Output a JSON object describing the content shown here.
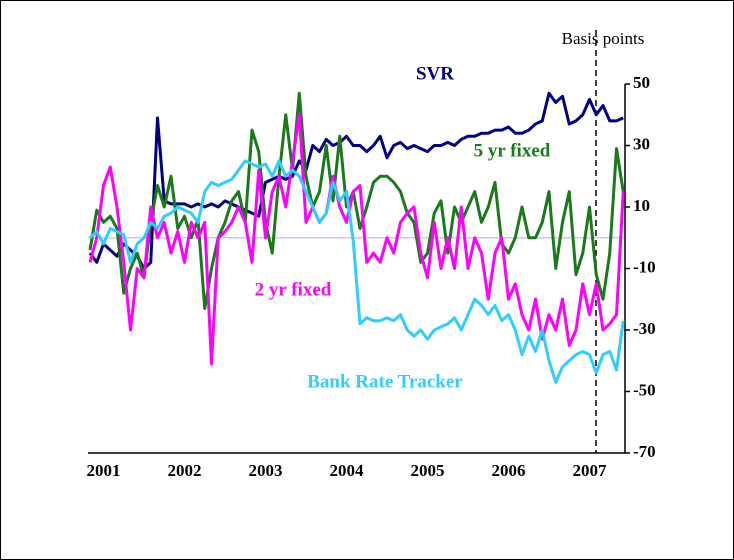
{
  "chart_data": {
    "type": "line",
    "y_axis_label": "Basis points",
    "categories": [
      null,
      null,
      "2001",
      null,
      null,
      null,
      null,
      null,
      null,
      null,
      null,
      null,
      null,
      null,
      "2002",
      null,
      null,
      null,
      null,
      null,
      null,
      null,
      null,
      null,
      null,
      null,
      "2003",
      null,
      null,
      null,
      null,
      null,
      null,
      null,
      null,
      null,
      null,
      null,
      "2004",
      null,
      null,
      null,
      null,
      null,
      null,
      null,
      null,
      null,
      null,
      null,
      "2005",
      null,
      null,
      null,
      null,
      null,
      null,
      null,
      null,
      null,
      null,
      null,
      "2006",
      null,
      null,
      null,
      null,
      null,
      null,
      null,
      null,
      null,
      null,
      null,
      "2007",
      null,
      null,
      null,
      null,
      null
    ],
    "series": [
      {
        "name": "SVR",
        "color": "#000080",
        "values": [
          -5,
          -8,
          -2,
          -4,
          -6,
          -2,
          -4,
          -6,
          -10,
          -8,
          39,
          12,
          11,
          11,
          11,
          10,
          11,
          10,
          11,
          10,
          12,
          11,
          10,
          9,
          8,
          7,
          18,
          19,
          20,
          19,
          20,
          25,
          22,
          30,
          28,
          32,
          30,
          31,
          33,
          30,
          30,
          28,
          30,
          33,
          26,
          30,
          31,
          29,
          30,
          29,
          28,
          30,
          30,
          31,
          30,
          32,
          33,
          33,
          34,
          34,
          35,
          35,
          36,
          34,
          34,
          35,
          37,
          38,
          47,
          44,
          46,
          37,
          38,
          40,
          45,
          40,
          43,
          38,
          38,
          39
        ]
      },
      {
        "name": "5 yr fixed",
        "color": "#1a7a1a",
        "values": [
          -4,
          9,
          5,
          7,
          3,
          -18,
          -10,
          -5,
          -13,
          5,
          17,
          10,
          20,
          3,
          7,
          0,
          6,
          -23,
          -10,
          0,
          5,
          12,
          15,
          5,
          35,
          28,
          5,
          -5,
          20,
          40,
          22,
          47,
          20,
          10,
          15,
          30,
          12,
          33,
          10,
          15,
          3,
          10,
          18,
          20,
          20,
          18,
          15,
          8,
          5,
          -8,
          -5,
          8,
          12,
          -5,
          10,
          5,
          10,
          15,
          5,
          10,
          18,
          -2,
          -5,
          0,
          10,
          0,
          0,
          5,
          15,
          -10,
          5,
          15,
          -12,
          -5,
          10,
          -12,
          -20,
          -5,
          29,
          15
        ]
      },
      {
        "name": "2 yr fixed",
        "color": "#ff00ff",
        "values": [
          -8,
          0,
          17,
          23,
          10,
          -8,
          -30,
          -10,
          -13,
          10,
          0,
          5,
          -5,
          2,
          -8,
          5,
          0,
          5,
          -41,
          0,
          2,
          5,
          10,
          5,
          -8,
          22,
          0,
          15,
          20,
          10,
          25,
          40,
          5,
          10,
          5,
          8,
          20,
          10,
          5,
          15,
          17,
          -8,
          -5,
          -8,
          0,
          -5,
          5,
          8,
          10,
          -5,
          -13,
          5,
          -10,
          0,
          -10,
          10,
          -10,
          0,
          -5,
          -20,
          -5,
          0,
          -20,
          -15,
          -25,
          -30,
          -20,
          -33,
          -25,
          -30,
          -20,
          -35,
          -30,
          -15,
          -25,
          -15,
          -30,
          -28,
          -25,
          15
        ]
      },
      {
        "name": "Bank Rate Tracker",
        "color": "#33ccff",
        "values": [
          0,
          2,
          -2,
          3,
          2,
          1,
          -8,
          -2,
          0,
          5,
          3,
          7,
          8,
          10,
          9,
          8,
          5,
          15,
          18,
          17,
          18,
          19,
          22,
          25,
          24,
          23,
          24,
          20,
          25,
          20,
          22,
          20,
          15,
          10,
          5,
          8,
          18,
          12,
          15,
          -1,
          -28,
          -26,
          -27,
          -27,
          -26,
          -27,
          -25,
          -30,
          -32,
          -30,
          -33,
          -30,
          -29,
          -28,
          -26,
          -30,
          -25,
          -20,
          -22,
          -25,
          -22,
          -27,
          -25,
          -30,
          -38,
          -32,
          -37,
          -30,
          -40,
          -47,
          -42,
          -40,
          -38,
          -37,
          -38,
          -44,
          -38,
          -37,
          -43,
          -27
        ]
      }
    ],
    "ylim": [
      -70,
      50
    ],
    "yticks": [
      50,
      30,
      10,
      -10,
      -30,
      -50,
      -70
    ]
  }
}
